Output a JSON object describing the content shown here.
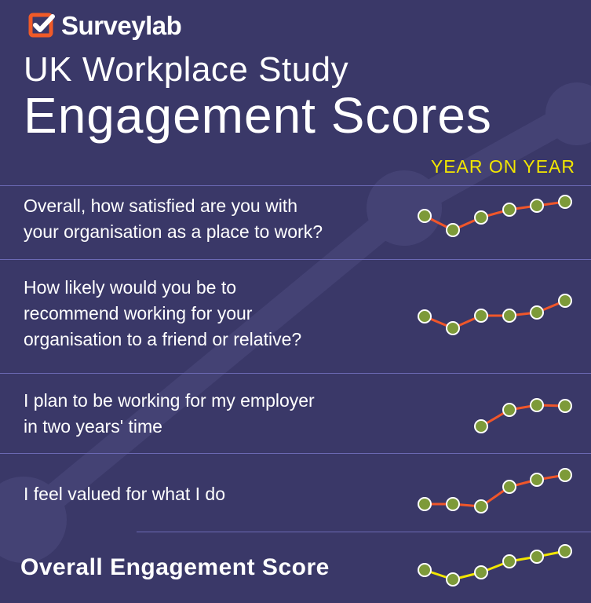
{
  "brand": {
    "name": "Surveylab",
    "accent": "#f05a28"
  },
  "header": {
    "title_line1": "UK Workplace Study",
    "title_line2": "Engagement Scores",
    "subtitle": "YEAR ON YEAR"
  },
  "colors": {
    "background": "#3a3868",
    "divider": "#6b69b4",
    "accent_yellow": "#f2e600",
    "series_line": "#f0562a",
    "overall_line": "#f2e600",
    "marker_fill": "#7d9a39"
  },
  "chart_data": [
    {
      "type": "line",
      "title": "Overall, how satisfied are you with\nyour organisation as a place to work?",
      "x": [
        1,
        2,
        3,
        4,
        5,
        6
      ],
      "values": [
        18,
        0,
        16,
        26,
        31,
        36
      ]
    },
    {
      "type": "line",
      "title": "How likely would you be to\nrecommend working for your\norganisation to a friend or relative?",
      "x": [
        1,
        2,
        3,
        4,
        5,
        6
      ],
      "values": [
        20,
        5,
        21,
        21,
        25,
        40
      ]
    },
    {
      "type": "line",
      "title": "I plan to be working for my employer\nin two years' time",
      "x": [
        1,
        2,
        3,
        4,
        5,
        6
      ],
      "values": [
        null,
        null,
        0,
        21,
        27,
        26
      ]
    },
    {
      "type": "line",
      "title": "I feel valued for what I do",
      "x": [
        1,
        2,
        3,
        4,
        5,
        6
      ],
      "values": [
        0,
        0,
        -3,
        22,
        31,
        37
      ]
    },
    {
      "type": "line",
      "title": "Overall Engagement Score",
      "x": [
        1,
        2,
        3,
        4,
        5,
        6
      ],
      "values": [
        12,
        0,
        9,
        23,
        29,
        36
      ]
    }
  ]
}
